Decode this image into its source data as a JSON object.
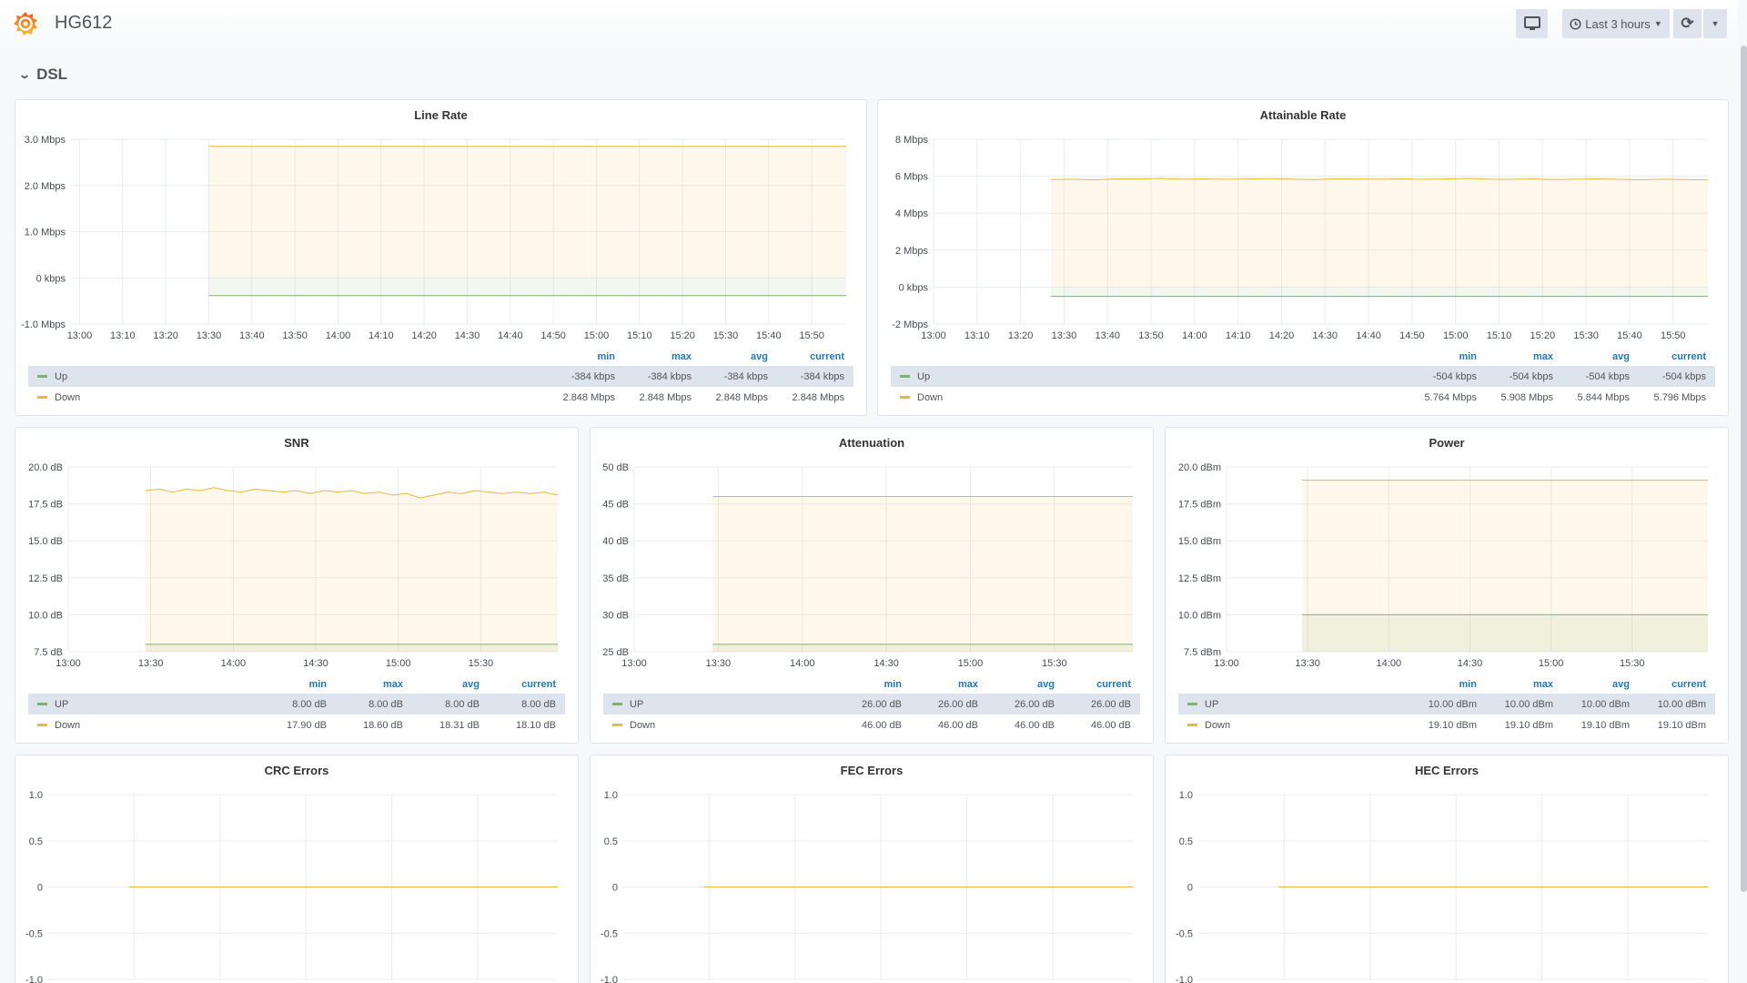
{
  "header": {
    "title": "HG612",
    "time_range": "Last 3 hours",
    "icons": {
      "logo": "grafana-logo",
      "tv": "monitor-icon",
      "clock": "clock-icon",
      "refresh": "refresh-icon",
      "caret": "caret-down-icon"
    }
  },
  "row": {
    "title": "DSL"
  },
  "legend_columns": [
    "min",
    "max",
    "avg",
    "current"
  ],
  "chart_data": [
    {
      "type": "line",
      "title": "Line Rate",
      "xlim": [
        "12:58",
        "15:58"
      ],
      "ylim": [
        -1,
        3
      ],
      "yticks": [
        {
          "v": 3,
          "label": "3.0 Mbps"
        },
        {
          "v": 2,
          "label": "2.0 Mbps"
        },
        {
          "v": 1,
          "label": "1.0 Mbps"
        },
        {
          "v": 0,
          "label": "0 kbps"
        },
        {
          "v": -1,
          "label": "-1.0 Mbps"
        }
      ],
      "xticks": [
        "13:00",
        "13:10",
        "13:20",
        "13:30",
        "13:40",
        "13:50",
        "14:00",
        "14:10",
        "14:20",
        "14:30",
        "14:40",
        "14:50",
        "15:00",
        "15:10",
        "15:20",
        "15:30",
        "15:40",
        "15:50"
      ],
      "series": [
        {
          "name": "Up",
          "color": "#7eb26d",
          "start": "13:30",
          "end": "15:58",
          "values": [
            -0.384,
            -0.384
          ],
          "stats": [
            "-384 kbps",
            "-384 kbps",
            "-384 kbps",
            "-384 kbps"
          ]
        },
        {
          "name": "Down",
          "color": "#eab839",
          "start": "13:30",
          "end": "15:58",
          "values": [
            2.848,
            2.848
          ],
          "stats": [
            "2.848 Mbps",
            "2.848 Mbps",
            "2.848 Mbps",
            "2.848 Mbps"
          ]
        }
      ]
    },
    {
      "type": "line",
      "title": "Attainable Rate",
      "xlim": [
        "13:00",
        "15:58"
      ],
      "ylim": [
        -2,
        8
      ],
      "yticks": [
        {
          "v": 8,
          "label": "8 Mbps"
        },
        {
          "v": 6,
          "label": "6 Mbps"
        },
        {
          "v": 4,
          "label": "4 Mbps"
        },
        {
          "v": 2,
          "label": "2 Mbps"
        },
        {
          "v": 0,
          "label": "0 kbps"
        },
        {
          "v": -2,
          "label": "-2 Mbps"
        }
      ],
      "xticks": [
        "13:00",
        "13:10",
        "13:20",
        "13:30",
        "13:40",
        "13:50",
        "14:00",
        "14:10",
        "14:20",
        "14:30",
        "14:40",
        "14:50",
        "15:00",
        "15:10",
        "15:20",
        "15:30",
        "15:40",
        "15:50"
      ],
      "series": [
        {
          "name": "Up",
          "color": "#7eb26d",
          "start": "13:27",
          "end": "15:58",
          "values": [
            -0.504,
            -0.504
          ],
          "stats": [
            "-504 kbps",
            "-504 kbps",
            "-504 kbps",
            "-504 kbps"
          ]
        },
        {
          "name": "Down",
          "color": "#eab839",
          "start": "13:27",
          "end": "15:58",
          "values": [
            5.82,
            5.84,
            5.81,
            5.86,
            5.85,
            5.88,
            5.84,
            5.86,
            5.83,
            5.85,
            5.87,
            5.84,
            5.82,
            5.86,
            5.85,
            5.84,
            5.86,
            5.83,
            5.85,
            5.88,
            5.84,
            5.83,
            5.85,
            5.82,
            5.84,
            5.86,
            5.83,
            5.81,
            5.84,
            5.82,
            5.796
          ],
          "stats": [
            "5.764 Mbps",
            "5.908 Mbps",
            "5.844 Mbps",
            "5.796 Mbps"
          ]
        }
      ]
    },
    {
      "type": "line",
      "title": "SNR",
      "xlim": [
        "13:00",
        "15:58"
      ],
      "ylim": [
        7.5,
        20
      ],
      "yticks": [
        {
          "v": 20,
          "label": "20.0 dB"
        },
        {
          "v": 17.5,
          "label": "17.5 dB"
        },
        {
          "v": 15,
          "label": "15.0 dB"
        },
        {
          "v": 12.5,
          "label": "12.5 dB"
        },
        {
          "v": 10,
          "label": "10.0 dB"
        },
        {
          "v": 7.5,
          "label": "7.5 dB"
        }
      ],
      "xticks": [
        "13:00",
        "13:30",
        "14:00",
        "14:30",
        "15:00",
        "15:30"
      ],
      "series": [
        {
          "name": "UP",
          "color": "#7eb26d",
          "start": "13:28",
          "end": "15:58",
          "values": [
            8,
            8
          ],
          "stats": [
            "8.00 dB",
            "8.00 dB",
            "8.00 dB",
            "8.00 dB"
          ]
        },
        {
          "name": "Down",
          "color": "#eab839",
          "start": "13:28",
          "end": "15:58",
          "values": [
            18.4,
            18.5,
            18.3,
            18.5,
            18.4,
            18.6,
            18.4,
            18.3,
            18.5,
            18.4,
            18.3,
            18.4,
            18.2,
            18.4,
            18.3,
            18.4,
            18.2,
            18.3,
            18.1,
            18.2,
            17.9,
            18.1,
            18.3,
            18.2,
            18.4,
            18.3,
            18.2,
            18.3,
            18.2,
            18.3,
            18.1
          ],
          "stats": [
            "17.90 dB",
            "18.60 dB",
            "18.31 dB",
            "18.10 dB"
          ]
        }
      ]
    },
    {
      "type": "line",
      "title": "Attenuation",
      "xlim": [
        "13:00",
        "15:58"
      ],
      "ylim": [
        25,
        50
      ],
      "yticks": [
        {
          "v": 50,
          "label": "50 dB"
        },
        {
          "v": 45,
          "label": "45 dB"
        },
        {
          "v": 40,
          "label": "40 dB"
        },
        {
          "v": 35,
          "label": "35 dB"
        },
        {
          "v": 30,
          "label": "30 dB"
        },
        {
          "v": 25,
          "label": "25 dB"
        }
      ],
      "xticks": [
        "13:00",
        "13:30",
        "14:00",
        "14:30",
        "15:00",
        "15:30"
      ],
      "series": [
        {
          "name": "UP",
          "color": "#7eb26d",
          "start": "13:28",
          "end": "15:58",
          "values": [
            26,
            26
          ],
          "stats": [
            "26.00 dB",
            "26.00 dB",
            "26.00 dB",
            "26.00 dB"
          ]
        },
        {
          "name": "Down",
          "color": "#eab839",
          "start": "13:28",
          "end": "15:58",
          "values": [
            46,
            46
          ],
          "stats": [
            "46.00 dB",
            "46.00 dB",
            "46.00 dB",
            "46.00 dB"
          ]
        }
      ]
    },
    {
      "type": "line",
      "title": "Power",
      "xlim": [
        "13:00",
        "15:58"
      ],
      "ylim": [
        7.5,
        20
      ],
      "yticks": [
        {
          "v": 20,
          "label": "20.0 dBm"
        },
        {
          "v": 17.5,
          "label": "17.5 dBm"
        },
        {
          "v": 15,
          "label": "15.0 dBm"
        },
        {
          "v": 12.5,
          "label": "12.5 dBm"
        },
        {
          "v": 10,
          "label": "10.0 dBm"
        },
        {
          "v": 7.5,
          "label": "7.5 dBm"
        }
      ],
      "xticks": [
        "13:00",
        "13:30",
        "14:00",
        "14:30",
        "15:00",
        "15:30"
      ],
      "series": [
        {
          "name": "UP",
          "color": "#7eb26d",
          "start": "13:28",
          "end": "15:58",
          "values": [
            10,
            10
          ],
          "stats": [
            "10.00 dBm",
            "10.00 dBm",
            "10.00 dBm",
            "10.00 dBm"
          ]
        },
        {
          "name": "Down",
          "color": "#eab839",
          "start": "13:28",
          "end": "15:58",
          "values": [
            19.1,
            19.1
          ],
          "stats": [
            "19.10 dBm",
            "19.10 dBm",
            "19.10 dBm",
            "19.10 dBm"
          ]
        }
      ]
    },
    {
      "type": "line",
      "title": "CRC Errors",
      "xlim": [
        "13:00",
        "15:58"
      ],
      "ylim": [
        -1,
        1
      ],
      "yticks": [
        {
          "v": 1,
          "label": "1.0"
        },
        {
          "v": 0.5,
          "label": "0.5"
        },
        {
          "v": 0,
          "label": "0"
        },
        {
          "v": -0.5,
          "label": "-0.5"
        },
        {
          "v": -1,
          "label": "-1.0"
        }
      ],
      "xgrid": [
        "13:30",
        "14:00",
        "14:30",
        "15:00",
        "15:30"
      ],
      "series": [
        {
          "color": "#eab839",
          "start": "13:28",
          "end": "15:58",
          "values": [
            0,
            0
          ]
        }
      ]
    },
    {
      "type": "line",
      "title": "FEC Errors",
      "xlim": [
        "13:00",
        "15:58"
      ],
      "ylim": [
        -1,
        1
      ],
      "yticks": [
        {
          "v": 1,
          "label": "1.0"
        },
        {
          "v": 0.5,
          "label": "0.5"
        },
        {
          "v": 0,
          "label": "0"
        },
        {
          "v": -0.5,
          "label": "-0.5"
        },
        {
          "v": -1,
          "label": "-1.0"
        }
      ],
      "xgrid": [
        "13:30",
        "14:00",
        "14:30",
        "15:00",
        "15:30"
      ],
      "series": [
        {
          "color": "#eab839",
          "start": "13:28",
          "end": "15:58",
          "values": [
            0,
            0
          ]
        }
      ]
    },
    {
      "type": "line",
      "title": "HEC Errors",
      "xlim": [
        "13:00",
        "15:58"
      ],
      "ylim": [
        -1,
        1
      ],
      "yticks": [
        {
          "v": 1,
          "label": "1.0"
        },
        {
          "v": 0.5,
          "label": "0.5"
        },
        {
          "v": 0,
          "label": "0"
        },
        {
          "v": -0.5,
          "label": "-0.5"
        },
        {
          "v": -1,
          "label": "-1.0"
        }
      ],
      "xgrid": [
        "13:30",
        "14:00",
        "14:30",
        "15:00",
        "15:30"
      ],
      "series": [
        {
          "color": "#eab839",
          "start": "13:28",
          "end": "15:58",
          "values": [
            0,
            0
          ]
        }
      ]
    }
  ]
}
